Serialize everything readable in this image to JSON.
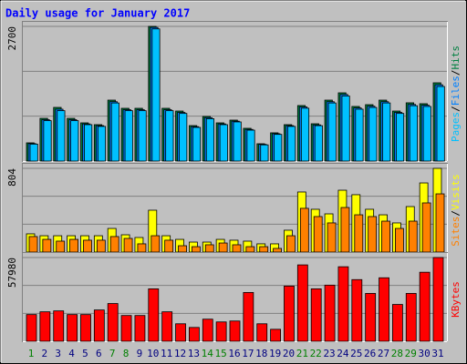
{
  "chart_data": [
    {
      "type": "bar",
      "title": "Daily usage for January 2017",
      "ylim": [
        0,
        2700
      ],
      "yticks": [
        2700
      ],
      "gridlines": [
        900,
        1800
      ],
      "legend_separator": "/",
      "series": [
        {
          "name": "Hits",
          "color": "#008040",
          "values": [
            365,
            857,
            1076,
            857,
            766,
            730,
            1222,
            1058,
            1058,
            2700,
            1058,
            1003,
            711,
            894,
            766,
            821,
            657,
            347,
            566,
            730,
            1113,
            748,
            1222,
            1368,
            1095,
            1131,
            1222,
            1003,
            1168,
            1150,
            1569
          ]
        },
        {
          "name": "Files",
          "color": "#0080ff",
          "values": [
            350,
            830,
            1040,
            830,
            745,
            710,
            1190,
            1030,
            1030,
            2680,
            1030,
            975,
            690,
            870,
            745,
            800,
            635,
            335,
            548,
            710,
            1085,
            725,
            1190,
            1335,
            1065,
            1100,
            1190,
            975,
            1135,
            1120,
            1530
          ]
        },
        {
          "name": "Pages",
          "color": "#00c0ff",
          "values": [
            340,
            810,
            1010,
            810,
            730,
            695,
            1165,
            1010,
            1010,
            2650,
            1010,
            955,
            675,
            850,
            730,
            785,
            620,
            325,
            535,
            695,
            1060,
            710,
            1165,
            1305,
            1040,
            1075,
            1165,
            955,
            1110,
            1095,
            1495
          ]
        }
      ]
    },
    {
      "type": "bar",
      "ylim": [
        0,
        804
      ],
      "yticks": [
        804
      ],
      "gridlines": [
        268,
        536
      ],
      "legend_separator": "/",
      "series": [
        {
          "name": "Visits",
          "color": "#ffff00",
          "values": [
            175,
            157,
            157,
            157,
            157,
            157,
            227,
            166,
            140,
            402,
            157,
            122,
            96,
            96,
            122,
            114,
            105,
            79,
            79,
            210,
            577,
            411,
            367,
            594,
            551,
            411,
            358,
            280,
            437,
            664,
            804
          ]
        },
        {
          "name": "Sites",
          "color": "#ff8000",
          "values": [
            149,
            122,
            105,
            122,
            114,
            114,
            149,
            131,
            79,
            157,
            114,
            61,
            52,
            70,
            87,
            70,
            52,
            52,
            35,
            157,
            420,
            341,
            280,
            428,
            358,
            341,
            297,
            227,
            297,
            472,
            559
          ]
        }
      ]
    },
    {
      "type": "bar",
      "ylim": [
        0,
        57980
      ],
      "yticks": [
        57980
      ],
      "gridlines": [
        19327,
        38653
      ],
      "series": [
        {
          "name": "KBytes",
          "color": "#ff0000",
          "values": [
            18480,
            20390,
            21020,
            18480,
            18480,
            21660,
            26120,
            17840,
            17840,
            36310,
            20390,
            12100,
            9560,
            15290,
            13380,
            14020,
            33770,
            12100,
            8280,
            38220,
            52880,
            36310,
            38860,
            51600,
            42690,
            33130,
            43960,
            25480,
            33130,
            47790,
            57980
          ]
        }
      ],
      "categories": [
        "1",
        "2",
        "3",
        "4",
        "5",
        "6",
        "7",
        "8",
        "9",
        "10",
        "11",
        "12",
        "13",
        "14",
        "15",
        "16",
        "17",
        "18",
        "19",
        "20",
        "21",
        "22",
        "23",
        "24",
        "25",
        "26",
        "27",
        "28",
        "29",
        "30",
        "31"
      ],
      "category_colors": [
        "#008000",
        "#000080",
        "#000080",
        "#000080",
        "#000080",
        "#000080",
        "#008000",
        "#008000",
        "#000080",
        "#000080",
        "#000080",
        "#000080",
        "#000080",
        "#008000",
        "#008000",
        "#000080",
        "#000080",
        "#000080",
        "#000080",
        "#000080",
        "#008000",
        "#008000",
        "#000080",
        "#000080",
        "#000080",
        "#000080",
        "#000080",
        "#008000",
        "#008000",
        "#000080",
        "#000080"
      ]
    }
  ]
}
